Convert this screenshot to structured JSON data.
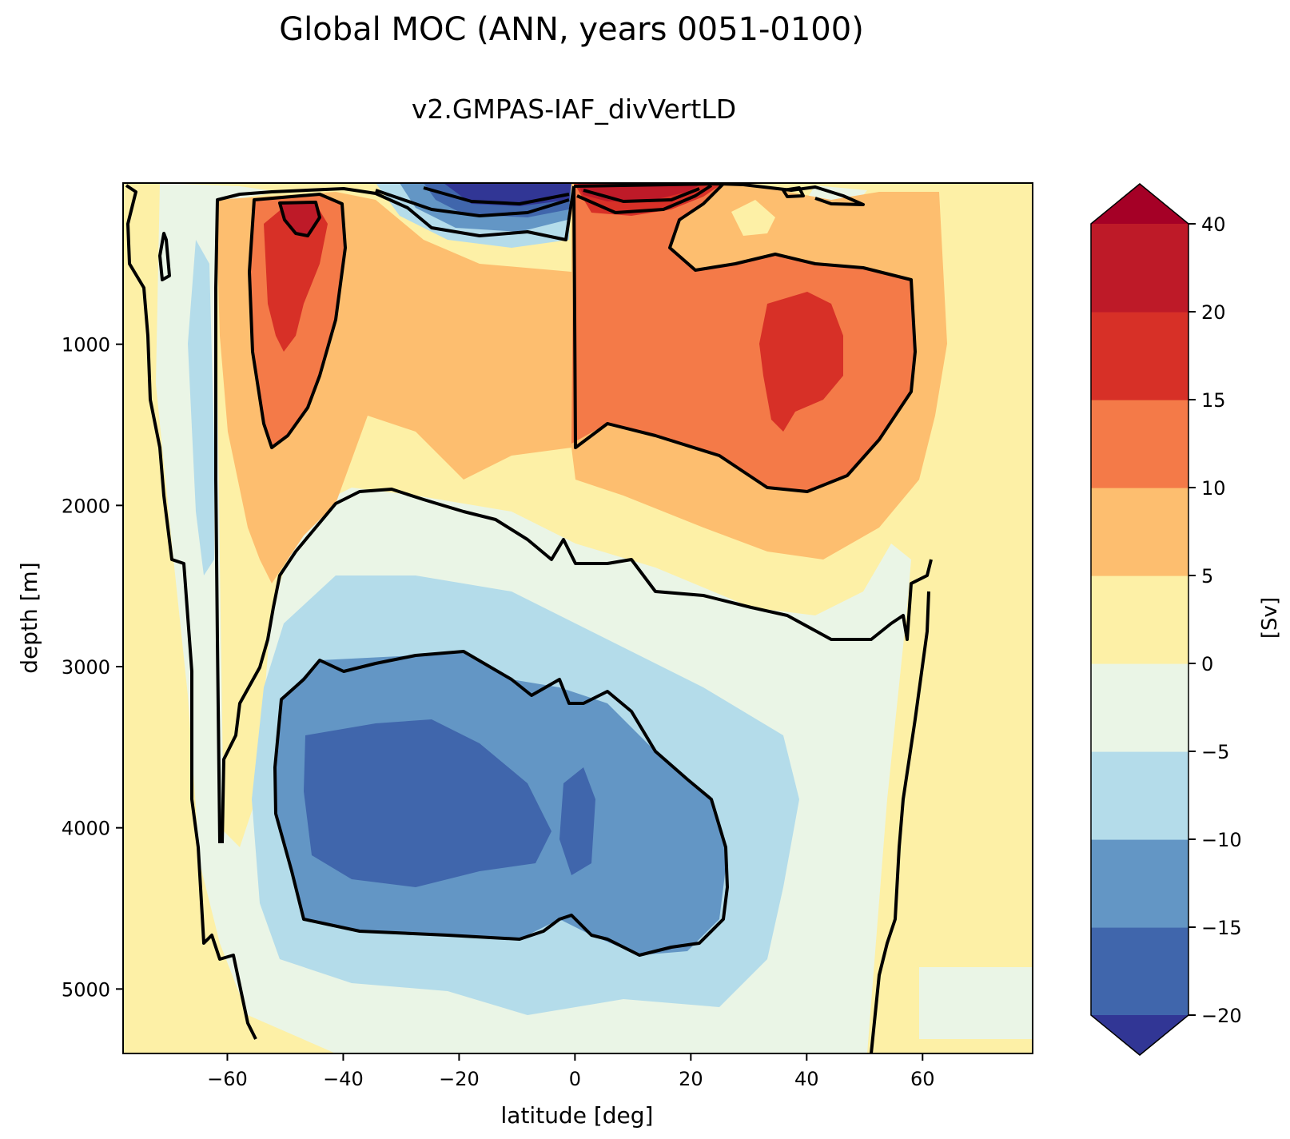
{
  "chart_data": {
    "type": "heatmap",
    "title": "Global MOC (ANN, years 0051-0100)",
    "subtitle": "v2.GMPAS-IAF_divVertLD",
    "xlabel": "latitude [deg]",
    "ylabel": "depth [m]",
    "xlim": [
      -78,
      79
    ],
    "ylim": [
      5400,
      0
    ],
    "x_ticks": [
      -60,
      -40,
      -20,
      0,
      20,
      40,
      60
    ],
    "x_tick_labels": [
      "−60",
      "−40",
      "−20",
      "0",
      "20",
      "40",
      "60"
    ],
    "y_ticks": [
      1000,
      2000,
      3000,
      4000,
      5000
    ],
    "y_tick_labels": [
      "1000",
      "2000",
      "3000",
      "4000",
      "5000"
    ],
    "colorbar": {
      "label": "[Sv]",
      "levels": [
        -20,
        -15,
        -10,
        -5,
        0,
        5,
        10,
        15,
        20,
        40
      ],
      "tick_labels": [
        "−20",
        "−15",
        "−10",
        "−5",
        "0",
        "5",
        "10",
        "15",
        "20",
        "40"
      ],
      "colors": [
        "#4066ac",
        "#6396c5",
        "#b4dcea",
        "#eaf5e6",
        "#fdf0a6",
        "#fdbe6f",
        "#f47a48",
        "#d73027",
        "#be1a28"
      ],
      "under_color": "#313695",
      "over_color": "#a50026",
      "extend": "both"
    },
    "features": [
      {
        "name": "southern-overturning-cell-max",
        "lat": -50,
        "depth": 400,
        "value": 25
      },
      {
        "name": "northern-overturning-cell-max",
        "lat": 38,
        "depth": 1100,
        "value": 18
      },
      {
        "name": "tropical-negative-cell-min",
        "lat": -10,
        "depth": 50,
        "value": -25
      },
      {
        "name": "tropical-positive-cell-max",
        "lat": 8,
        "depth": 50,
        "value": 25
      },
      {
        "name": "abyssal-cell-min",
        "lat": -20,
        "depth": 3900,
        "value": -17
      }
    ]
  }
}
